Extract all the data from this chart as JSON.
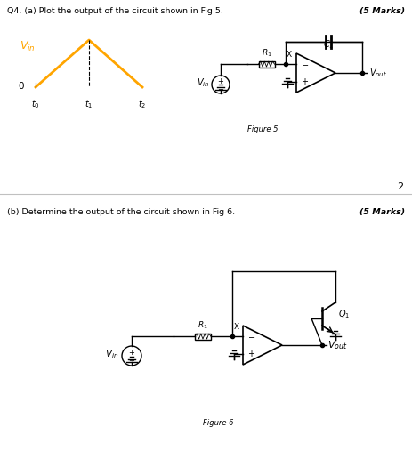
{
  "title_a": "Q4. (a) Plot the output of the circuit shown in Fig 5.",
  "marks_a": "(5 Marks)",
  "title_b": "(b) Determine the output of the circuit shown in Fig 6.",
  "marks_b": "(5 Marks)",
  "page_num": "2",
  "fig5_caption": "Figure 5",
  "fig6_caption": "Figure 6",
  "bg_color": "#ffffff",
  "text_color": "#000000",
  "orange_color": "#FFA500",
  "divider_color": "#c0c0c0"
}
